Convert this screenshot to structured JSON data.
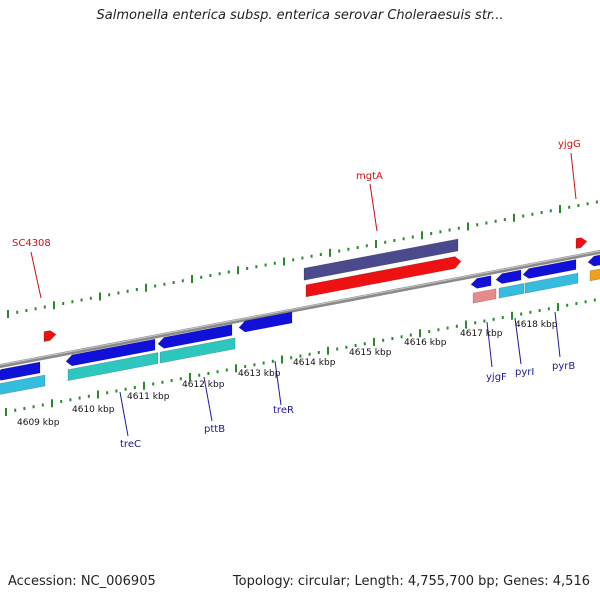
{
  "header": {
    "title": "Salmonella enterica subsp. enterica serovar Choleraesuis str..."
  },
  "footer": {
    "accession": "Accession: NC_006905",
    "summary": "Topology: circular; Length: 4,755,700 bp; Genes: 4,516"
  },
  "colors": {
    "backbone": "#8a8a8a",
    "tick": "#2a8a2a",
    "gene_blue": "#1010d8",
    "gene_cyan": "#35bde0",
    "gene_teal": "#2ec7c0",
    "gene_purple": "#4a4a8c",
    "gene_red": "#ee1111",
    "gene_pink": "#e88a8a",
    "gene_orange": "#f0a020",
    "label_red": "#cc1111",
    "label_blue": "#1a1aa0"
  },
  "scale": {
    "kbp_labels": [
      "4609 kbp",
      "4610 kbp",
      "4611 kbp",
      "4612 kbp",
      "4613 kbp",
      "4614 kbp",
      "4615 kbp",
      "4616 kbp",
      "4617 kbp",
      "4618 kbp"
    ]
  },
  "upper_labels": [
    "SC4308",
    "mgtA",
    "yjgG"
  ],
  "lower_labels": [
    "treC",
    "pttB",
    "treR",
    "yjgF",
    "pyrI",
    "pyrB"
  ]
}
